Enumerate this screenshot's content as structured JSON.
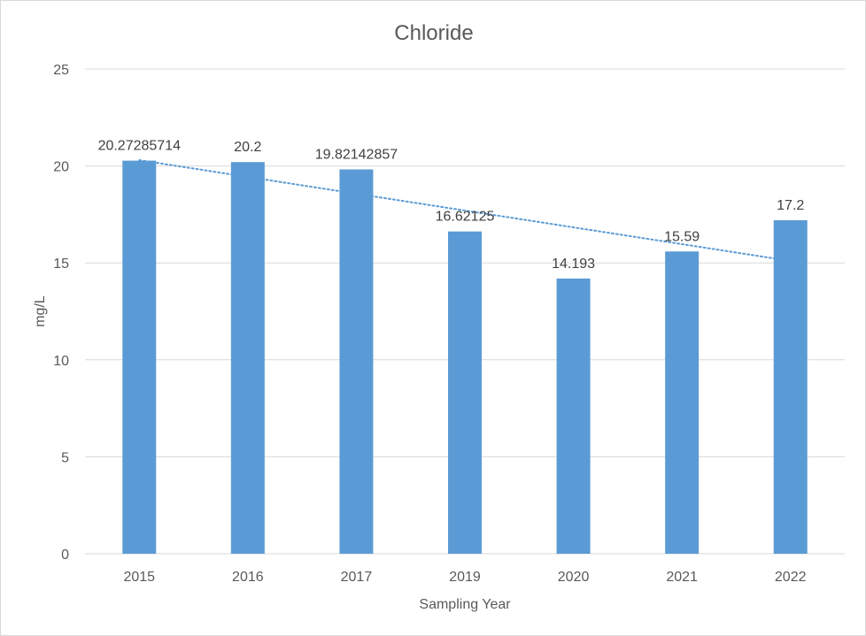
{
  "chart_data": {
    "type": "bar",
    "title": "Chloride",
    "xlabel": "Sampling Year",
    "ylabel": "mg/L",
    "categories": [
      "2015",
      "2016",
      "2017",
      "2019",
      "2020",
      "2021",
      "2022"
    ],
    "values": [
      20.27285714,
      20.2,
      19.82142857,
      16.62125,
      14.193,
      15.59,
      17.2
    ],
    "data_labels": [
      "20.27285714",
      "20.2",
      "19.82142857",
      "16.62125",
      "14.193",
      "15.59",
      "17.2"
    ],
    "ylim": [
      0,
      25
    ],
    "yticks": [
      "0",
      "5",
      "10",
      "15",
      "20",
      "25"
    ],
    "ytick_values": [
      0,
      5,
      10,
      15,
      20,
      25
    ],
    "grid": true,
    "legend": "none",
    "trendline": {
      "type": "linear",
      "style": "dotted",
      "from_category": "2015",
      "to_category": "2022",
      "start_value": 20.3,
      "end_value": 15.1
    },
    "colors": {
      "bar": "#5b9bd5",
      "trendline": "#5b9bd5",
      "grid": "#d9d9d9",
      "text": "#595959"
    }
  }
}
